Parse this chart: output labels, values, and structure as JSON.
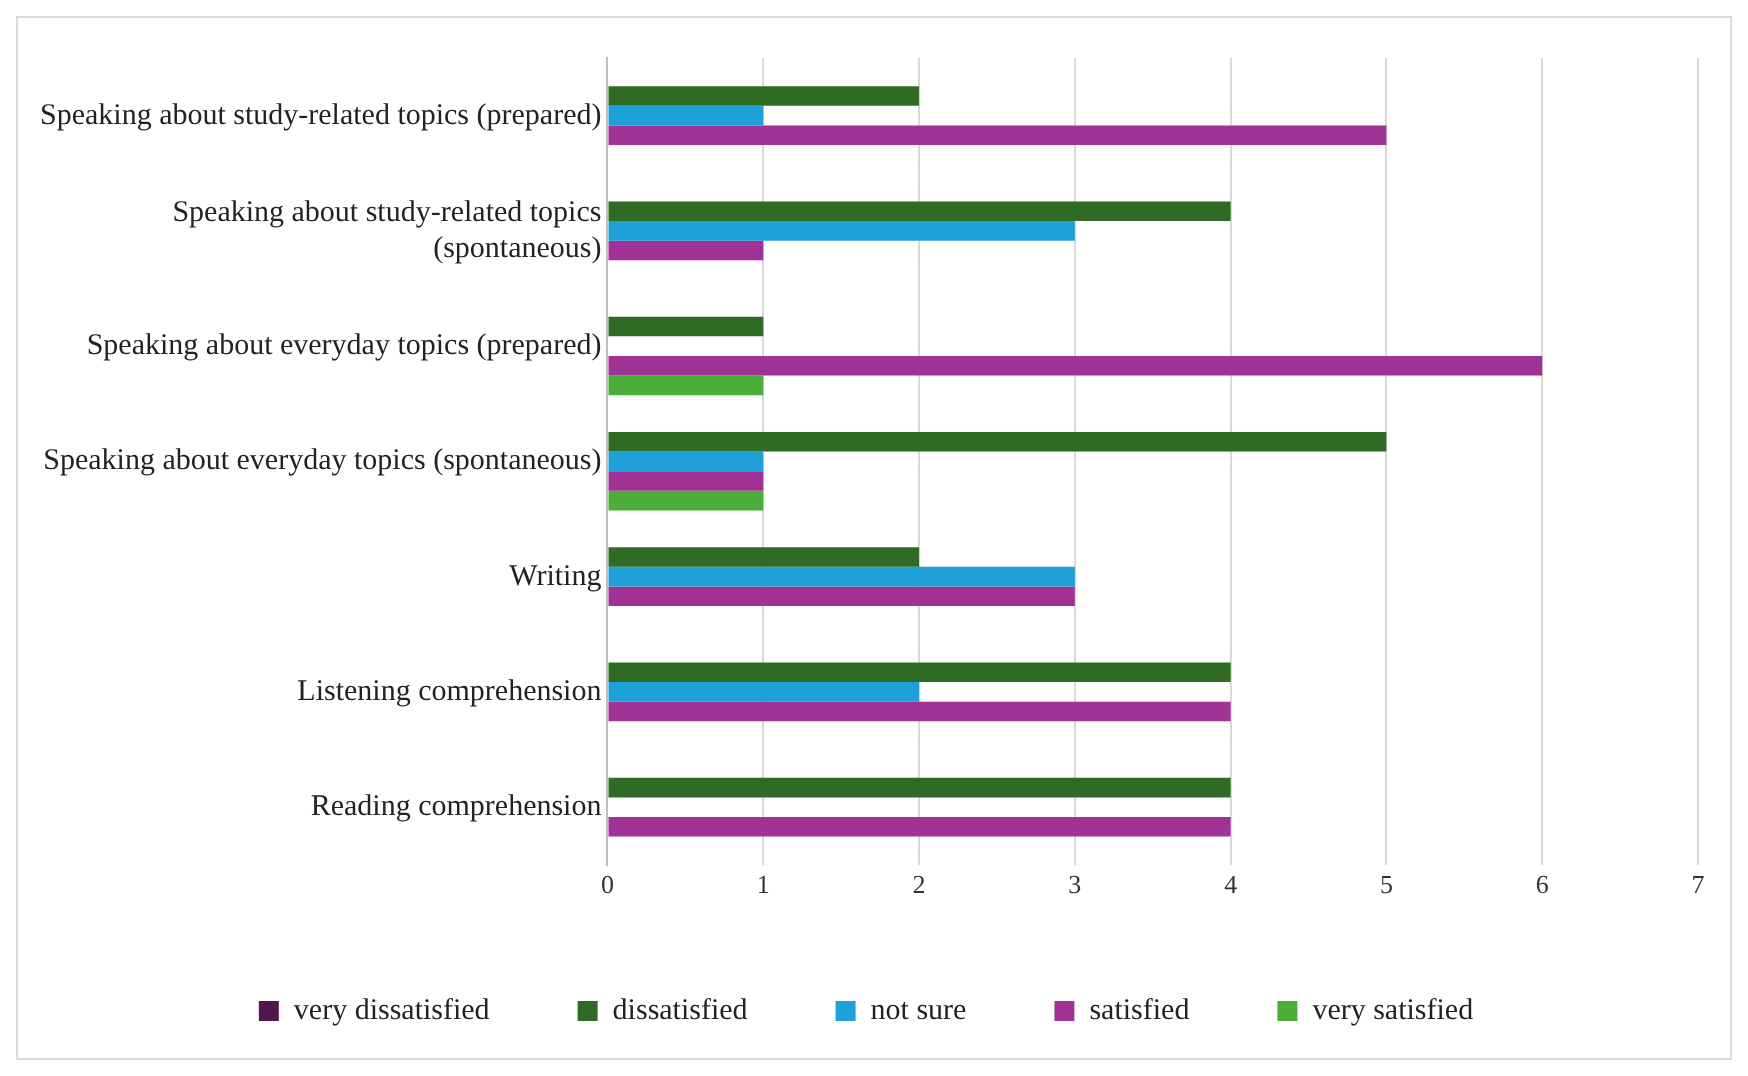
{
  "chart_data": {
    "type": "bar",
    "orientation": "horizontal",
    "categories": [
      "Speaking about study-related topics (prepared)",
      "Speaking about study-related topics (spontaneous)",
      "Speaking about everyday topics (prepared)",
      "Speaking about everyday topics (spontaneous)",
      "Writing",
      "Listening comprehension",
      "Reading comprehension"
    ],
    "series": [
      {
        "name": "very dissatisfied",
        "color": "#4f1750",
        "values": [
          0,
          0,
          0,
          0,
          0,
          0,
          0
        ]
      },
      {
        "name": "dissatisfied",
        "color": "#2f6b25",
        "values": [
          2,
          4,
          1,
          5,
          2,
          4,
          4
        ]
      },
      {
        "name": "not sure",
        "color": "#1ea0d8",
        "values": [
          1,
          3,
          0,
          1,
          3,
          2,
          0
        ]
      },
      {
        "name": "satisfied",
        "color": "#a03296",
        "values": [
          5,
          1,
          6,
          1,
          3,
          4,
          4
        ]
      },
      {
        "name": "very satisfied",
        "color": "#4cae3a",
        "values": [
          0,
          0,
          1,
          1,
          0,
          0,
          0
        ]
      }
    ],
    "xlim": [
      0,
      7
    ],
    "xticks": [
      0,
      1,
      2,
      3,
      4,
      5,
      6,
      7
    ],
    "grid": "x",
    "legend": "bottom"
  }
}
